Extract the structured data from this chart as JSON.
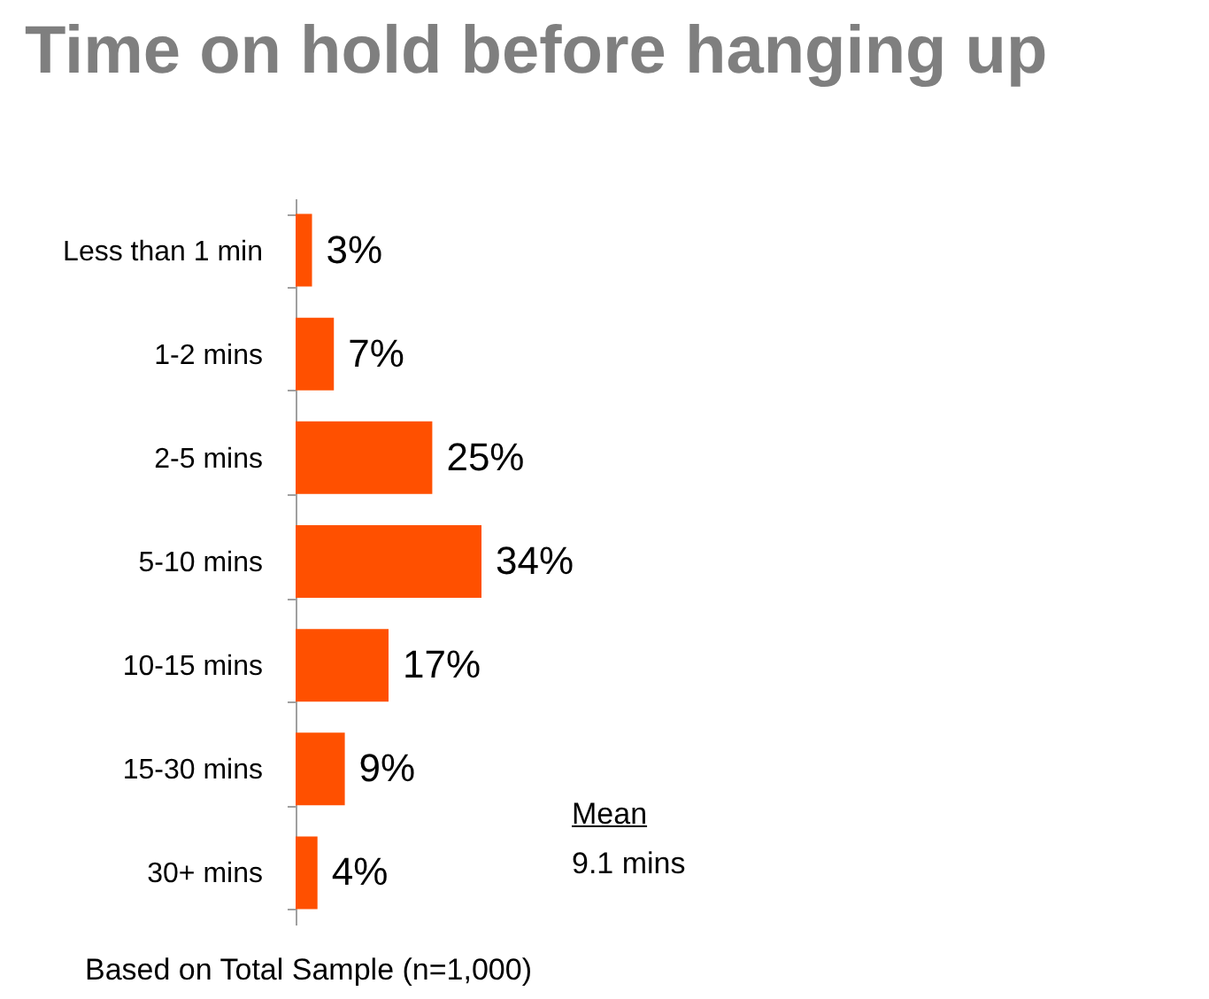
{
  "chart_data": {
    "type": "bar",
    "orientation": "horizontal",
    "title": "Time on hold before hanging up",
    "categories": [
      "Less than 1 min",
      "1-2 mins",
      "2-5 mins",
      "5-10 mins",
      "10-15 mins",
      "15-30 mins",
      "30+ mins"
    ],
    "values": [
      3,
      7,
      25,
      34,
      17,
      9,
      4
    ],
    "value_labels": [
      "3%",
      "7%",
      "25%",
      "34%",
      "17%",
      "9%",
      "4%"
    ],
    "color": "#ff5000",
    "annotations": [
      "Mean",
      "9.1 mins",
      "Based on Total Sample (n=1,000)"
    ]
  }
}
